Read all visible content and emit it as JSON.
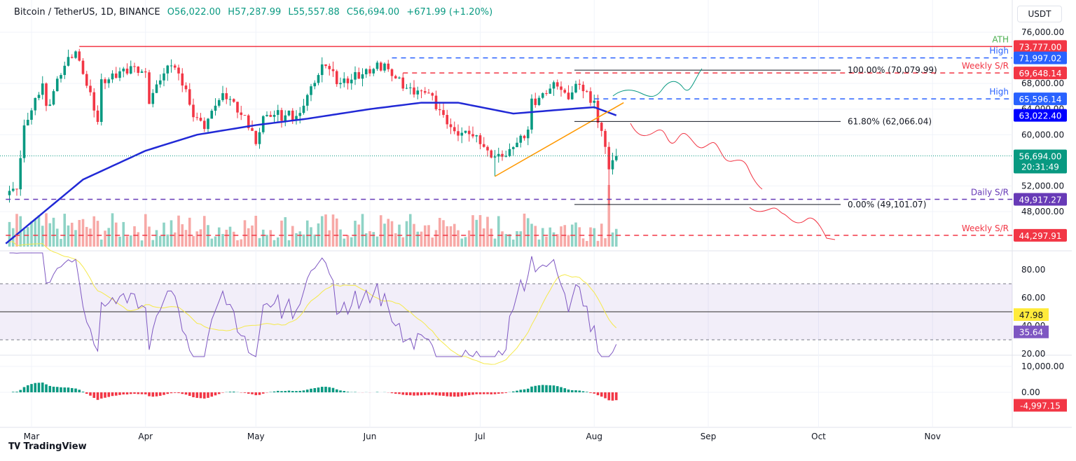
{
  "header": {
    "symbol": "Bitcoin / TetherUS, 1D, BINANCE",
    "open": "O56,022.00",
    "high": "H57,287.99",
    "low": "L55,557.88",
    "close": "C56,694.00",
    "change": "+671.99 (+1.20%)",
    "currency": "USDT"
  },
  "footer": {
    "brand": "TradingView"
  },
  "colors": {
    "up": "#089981",
    "down": "#f23645",
    "ma": "#2129d6",
    "trend": "#ff9800",
    "rsi": "#7e57c2",
    "rsi_ma": "#f5e94a",
    "blue_level": "#2962ff",
    "purple_level": "#673ab7"
  },
  "chart_data": [
    {
      "type": "candlestick",
      "pane": "price",
      "ylim": [
        43000,
        77000
      ],
      "price_ticks": [
        "76,000.00",
        "68,000.00",
        "64,000.00",
        "60,000.00",
        "52,000.00",
        "48,000.00"
      ],
      "x_ticks": [
        "Mar",
        "Apr",
        "May",
        "Jun",
        "Jul",
        "Aug",
        "Sep",
        "Oct",
        "Nov"
      ],
      "closes": [
        [
          "2024-02-23",
          51000
        ],
        [
          "2024-02-26",
          51700
        ],
        [
          "2024-02-28",
          61000
        ],
        [
          "2024-03-04",
          68000
        ],
        [
          "2024-03-05",
          63800
        ],
        [
          "2024-03-08",
          68300
        ],
        [
          "2024-03-11",
          72000
        ],
        [
          "2024-03-13",
          73000
        ],
        [
          "2024-03-14",
          71400
        ],
        [
          "2024-03-19",
          62000
        ],
        [
          "2024-03-20",
          67800
        ],
        [
          "2024-03-25",
          69900
        ],
        [
          "2024-03-28",
          70700
        ],
        [
          "2024-04-01",
          69600
        ],
        [
          "2024-04-02",
          65500
        ],
        [
          "2024-04-08",
          71600
        ],
        [
          "2024-04-12",
          67100
        ],
        [
          "2024-04-13",
          64000
        ],
        [
          "2024-04-17",
          61300
        ],
        [
          "2024-04-20",
          64900
        ],
        [
          "2024-04-23",
          66400
        ],
        [
          "2024-04-30",
          60600
        ],
        [
          "2024-05-01",
          58300
        ],
        [
          "2024-05-03",
          62900
        ],
        [
          "2024-05-06",
          63100
        ],
        [
          "2024-05-13",
          62900
        ],
        [
          "2024-05-15",
          66200
        ],
        [
          "2024-05-20",
          71400
        ],
        [
          "2024-05-23",
          67900
        ],
        [
          "2024-05-27",
          68600
        ],
        [
          "2024-06-05",
          71100
        ],
        [
          "2024-06-07",
          69300
        ],
        [
          "2024-06-11",
          67300
        ],
        [
          "2024-06-17",
          66500
        ],
        [
          "2024-06-24",
          60300
        ],
        [
          "2024-06-28",
          60300
        ],
        [
          "2024-07-04",
          57000
        ],
        [
          "2024-07-05",
          56600
        ],
        [
          "2024-07-08",
          56700
        ],
        [
          "2024-07-14",
          60800
        ],
        [
          "2024-07-15",
          64800
        ],
        [
          "2024-07-20",
          67200
        ],
        [
          "2024-07-22",
          67600
        ],
        [
          "2024-07-25",
          65800
        ],
        [
          "2024-07-28",
          68200
        ],
        [
          "2024-07-29",
          66800
        ],
        [
          "2024-08-01",
          65300
        ],
        [
          "2024-08-02",
          61500
        ],
        [
          "2024-08-03",
          60700
        ],
        [
          "2024-08-04",
          58100
        ],
        [
          "2024-08-05",
          54000
        ],
        [
          "2024-08-06",
          56022
        ],
        [
          "2024-08-07",
          56694
        ]
      ],
      "special_lows": [
        [
          "2024-07-05",
          53500
        ],
        [
          "2024-08-05",
          49000
        ]
      ],
      "moving_average": [
        [
          "2024-02-23",
          43000
        ],
        [
          "2024-03-15",
          53000
        ],
        [
          "2024-04-01",
          57500
        ],
        [
          "2024-04-15",
          60000
        ],
        [
          "2024-05-01",
          61500
        ],
        [
          "2024-05-15",
          62500
        ],
        [
          "2024-06-01",
          64000
        ],
        [
          "2024-06-15",
          65000
        ],
        [
          "2024-06-25",
          65000
        ],
        [
          "2024-07-10",
          63300
        ],
        [
          "2024-07-25",
          64000
        ],
        [
          "2024-08-01",
          64300
        ],
        [
          "2024-08-07",
          63022.4
        ]
      ],
      "last_price": "56,694.00",
      "countdown": "20:31:49",
      "ma_value": "63,022.40",
      "levels": [
        {
          "label": "ATH",
          "value": 73777,
          "text": "73,777.00",
          "color": "#f23645",
          "style": "solid",
          "from": "2024-03-14",
          "label_color": "#4caf50"
        },
        {
          "label": "High",
          "value": 71997.02,
          "text": "71,997.02",
          "color": "#2962ff",
          "style": "dashed",
          "from": "2024-06-07",
          "label_color": "#2962ff"
        },
        {
          "label": "Weekly S/R",
          "value": 69648.14,
          "text": "69,648.14",
          "color": "#f23645",
          "style": "dashed",
          "from": "2024-06-10",
          "label_color": "#f23645"
        },
        {
          "label": "High",
          "value": 65596.14,
          "text": "65,596.14",
          "color": "#2962ff",
          "style": "dashed",
          "from": "2024-08-01",
          "label_color": "#2962ff"
        },
        {
          "label": "Daily S/R",
          "value": 49917.27,
          "text": "49,917.27",
          "color": "#673ab7",
          "style": "dashed",
          "from": "2024-02-23",
          "label_color": "#673ab7"
        },
        {
          "label": "Weekly S/R",
          "value": 44297.91,
          "text": "44,297.91",
          "color": "#f23645",
          "style": "dashed",
          "from": "2024-02-23",
          "label_color": "#f23645"
        }
      ],
      "fibonacci": [
        {
          "label": "100.00% (70,079.99)",
          "value": 70079.99
        },
        {
          "label": "61.80% (62,066.04)",
          "value": 62066.04
        },
        {
          "label": "0.00% (49,101.07)",
          "value": 49101.07
        }
      ],
      "trendline": [
        [
          "2024-07-05",
          53500
        ],
        [
          "2024-08-09",
          65000
        ]
      ]
    },
    {
      "type": "line",
      "pane": "rsi",
      "ylim": [
        15,
        95
      ],
      "ticks": [
        "80.00",
        "60.00",
        "40.00",
        "20.00"
      ],
      "band": [
        30,
        70
      ],
      "mid": 50,
      "rsi_value": "35.64",
      "rsi_ma_value": "47.98"
    },
    {
      "type": "histogram",
      "pane": "macd",
      "ticks": [
        "10,000.00",
        "0.00"
      ],
      "last_value": "-4,997.15"
    }
  ]
}
